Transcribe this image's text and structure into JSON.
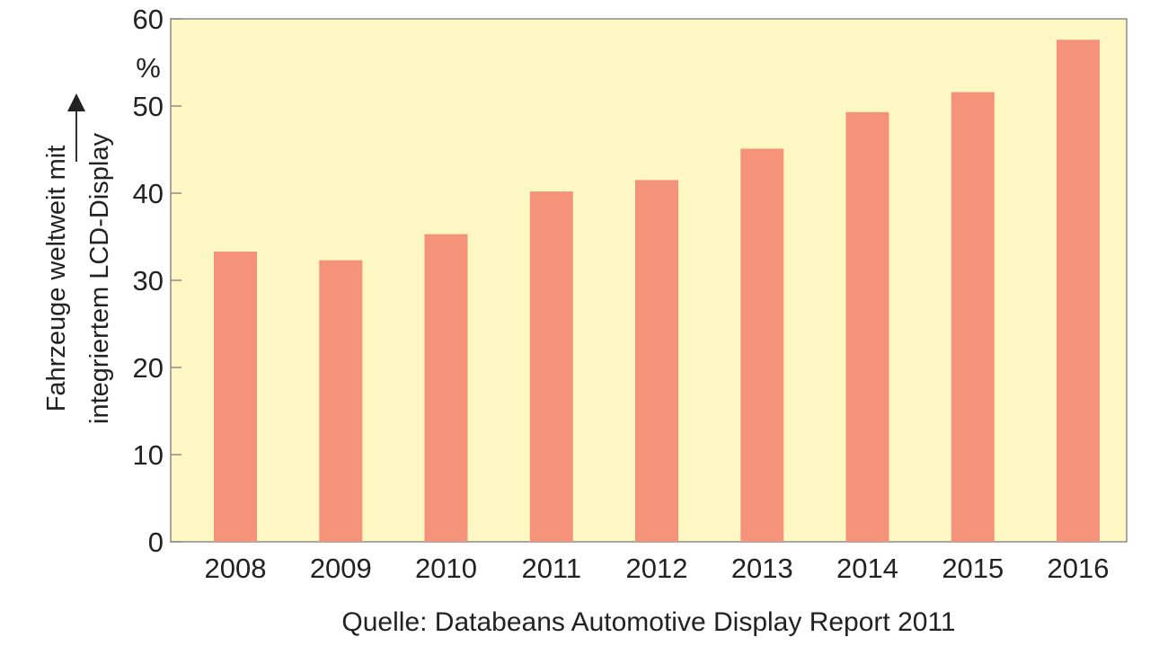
{
  "chart_data": {
    "type": "bar",
    "categories": [
      "2008",
      "2009",
      "2010",
      "2011",
      "2012",
      "2013",
      "2014",
      "2015",
      "2016"
    ],
    "values": [
      33.3,
      32.3,
      35.3,
      40.2,
      41.5,
      45.1,
      49.3,
      51.6,
      57.6
    ],
    "ylim": [
      0,
      60
    ],
    "yticks": [
      "0",
      "10",
      "20",
      "30",
      "40",
      "50",
      "60"
    ],
    "yunit": "%",
    "ylabel_line1": "Fahrzeuge weltweit mit",
    "ylabel_line2": "integriertem LCD-Display",
    "source": "Quelle: Databeans Automotive Display Report 2011",
    "grid": false,
    "colors": {
      "bar": "#f4937a",
      "plot_background": "#fdf7c3",
      "frame": "#8a8a8a",
      "text": "#222222"
    }
  }
}
